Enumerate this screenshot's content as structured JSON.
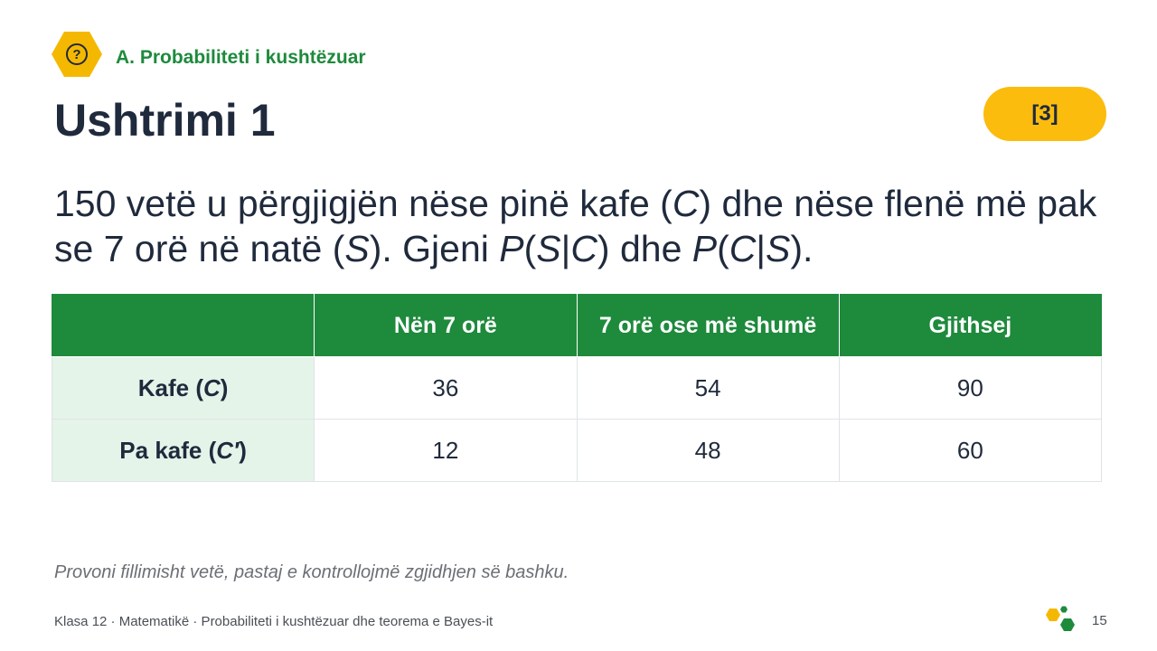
{
  "header": {
    "icon": "question-mark-icon",
    "section": "A. Probabiliteti i kushtëzuar",
    "title": "Ushtrimi 1",
    "marks": "[3]"
  },
  "question": {
    "p1": "150 vetë u përgjigjën nëse pinë kafe (",
    "c1": "C",
    "p2": ") dhe nëse flenë më pak se 7 orë në natë (",
    "s1": "S",
    "p3": "). Gjeni ",
    "P1": "P",
    "p4": "(",
    "s2": "S",
    "p5": "|",
    "c2": "C",
    "p6": ") dhe ",
    "P2": "P",
    "p7": "(",
    "c3": "C",
    "p8": "|",
    "s3": "S",
    "p9": ")."
  },
  "table": {
    "headers": [
      "",
      "Nën 7 orë",
      "7 orë ose më shumë",
      "Gjithsej"
    ],
    "rows": [
      {
        "label_pre": "Kafe (",
        "label_var": "C",
        "label_post": ")",
        "values": [
          "36",
          "54",
          "90"
        ]
      },
      {
        "label_pre": "Pa kafe (",
        "label_var": "C′",
        "label_post": ")",
        "values": [
          "12",
          "48",
          "60"
        ]
      }
    ]
  },
  "note": "Provoni fillimisht vetë, pastaj e kontrollojmë zgjidhjen së bashku.",
  "footer": {
    "text": "Klasa 12 · Matematikë · Probabiliteti i kushtëzuar dhe teorema e Bayes-it",
    "page": "15",
    "logo": "hexagon-cluster-logo"
  },
  "colors": {
    "accent_green": "#1e8a3c",
    "accent_yellow": "#fbbc0e",
    "row_header_bg": "#e5f4e9",
    "text_dark": "#1f2a3c"
  }
}
